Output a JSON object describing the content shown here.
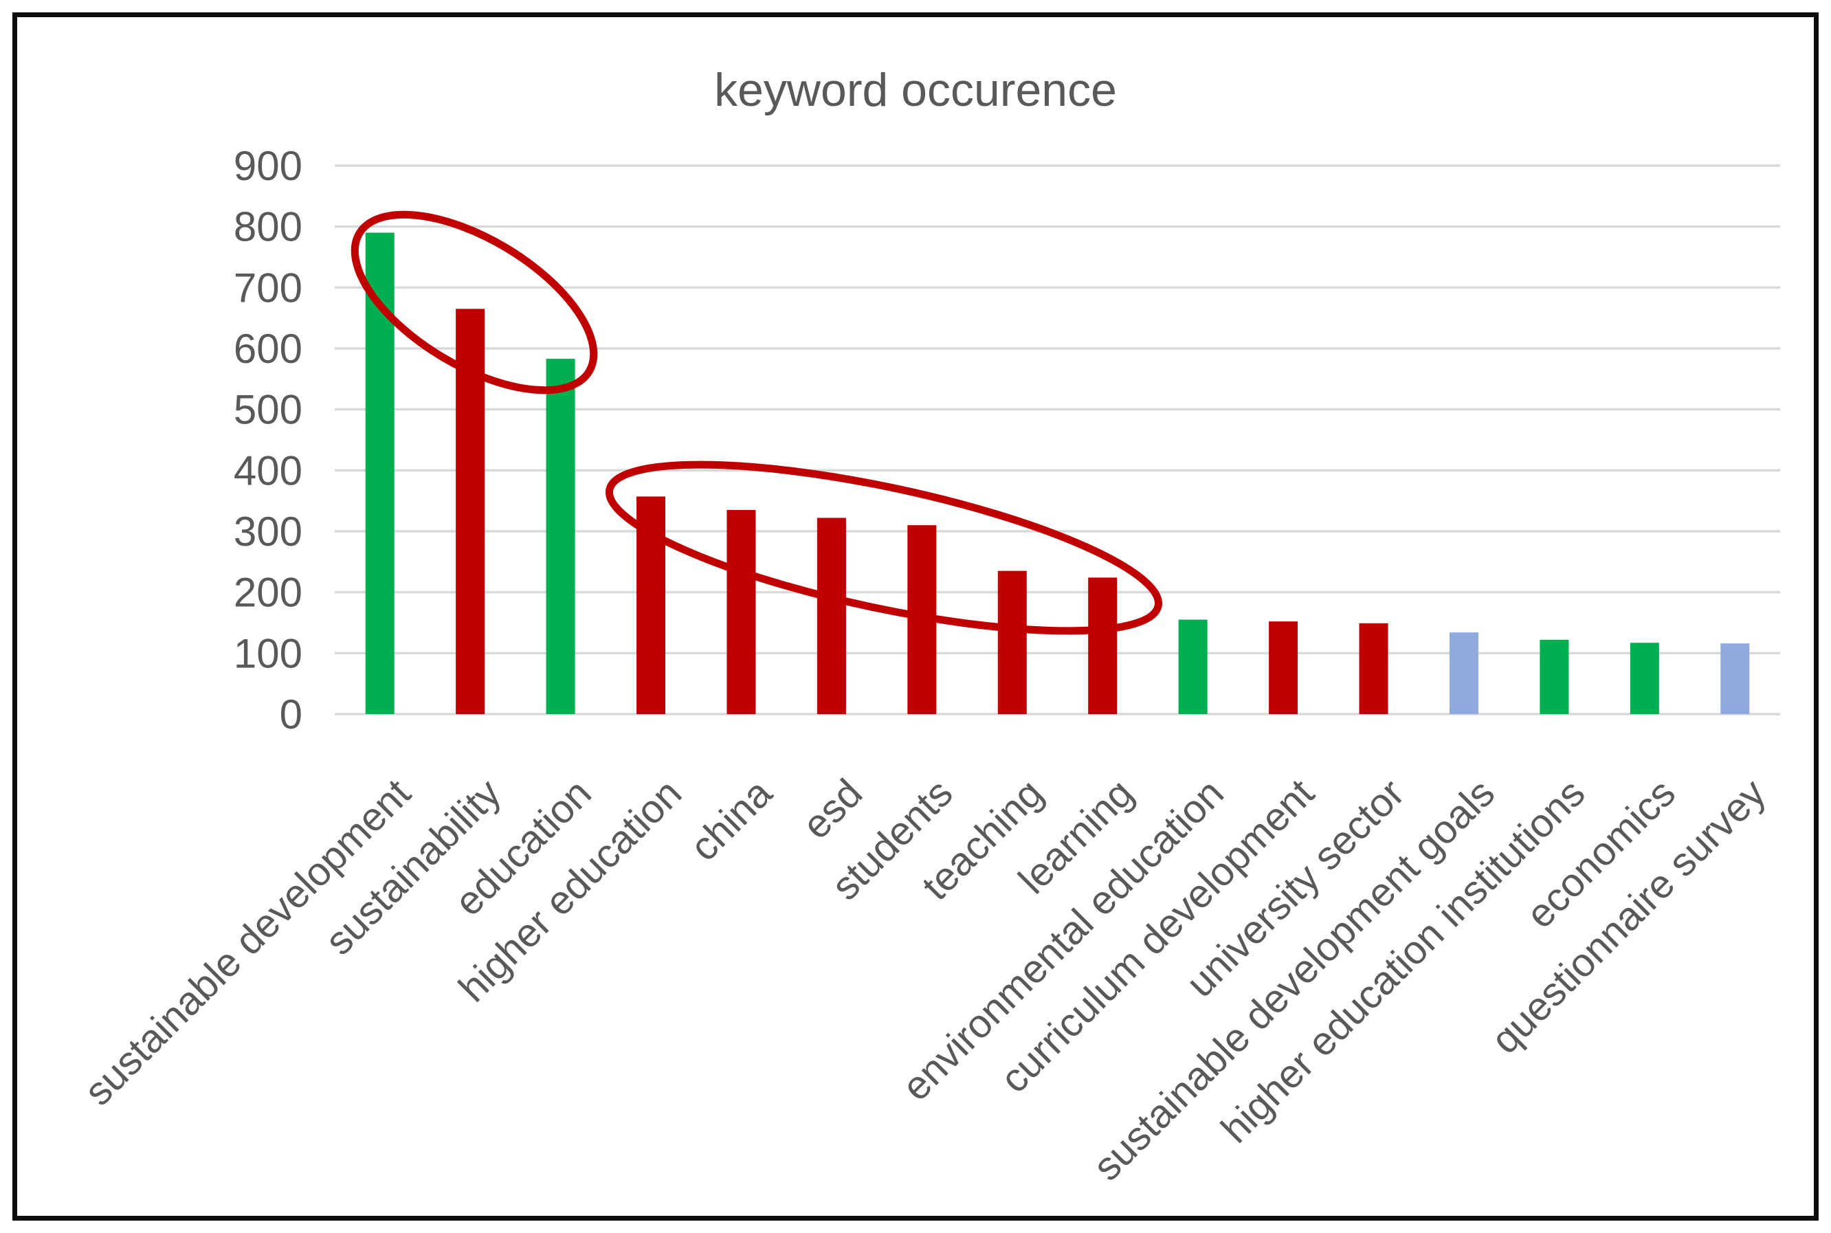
{
  "chart_data": {
    "type": "bar",
    "title": "keyword occurence",
    "xlabel": "",
    "ylabel": "",
    "ylim": [
      0,
      900
    ],
    "ytick_interval": 100,
    "ytick_labels": [
      "0",
      "100",
      "200",
      "300",
      "400",
      "500",
      "600",
      "700",
      "800",
      "900"
    ],
    "grid": true,
    "legend": false,
    "categories": [
      "sustainable development",
      "sustainability",
      "education",
      "higher education",
      "china",
      "esd",
      "students",
      "teaching",
      "learning",
      "environmental education",
      "curriculum development",
      "university sector",
      "sustainable development goals",
      "higher education institutions",
      "economics",
      "questionnaire survey"
    ],
    "values": [
      790,
      665,
      583,
      357,
      335,
      322,
      310,
      235,
      224,
      155,
      152,
      149,
      134,
      122,
      117,
      116
    ],
    "bar_color_names": [
      "green",
      "red",
      "green",
      "red",
      "red",
      "red",
      "red",
      "red",
      "red",
      "green",
      "red",
      "red",
      "blue",
      "green",
      "green",
      "blue"
    ],
    "annotations": [
      {
        "shape": "ellipse",
        "color": "#C00000",
        "circled_categories": [
          "sustainable development",
          "sustainability",
          "education"
        ]
      },
      {
        "shape": "ellipse",
        "color": "#C00000",
        "circled_categories": [
          "higher education",
          "china",
          "esd",
          "students",
          "teaching",
          "learning"
        ]
      }
    ]
  },
  "colors": {
    "green": "#00B050",
    "red": "#C00000",
    "blue": "#8FAADC",
    "gridline": "#D9D9D9",
    "text": "#595959",
    "frame": "#0d0d0d"
  }
}
